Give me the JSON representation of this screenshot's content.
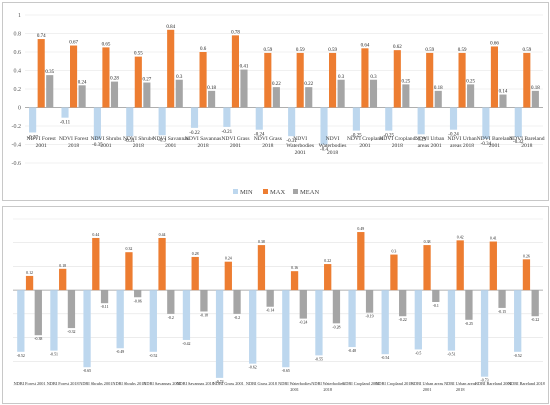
{
  "colors": {
    "min": "#bdd7ee",
    "max": "#ed7d31",
    "mean": "#a5a5a5",
    "grid": "#e2e2e2",
    "axis": "#9a9a9a"
  },
  "chart_data": [
    {
      "type": "bar",
      "title": "",
      "xlabel": "",
      "ylabel": "",
      "ylim": [
        -0.6,
        1
      ],
      "yticks": [
        "-0.6",
        "-0.4",
        "-0.2",
        "0",
        "0.2",
        "0.4",
        "0.6",
        "0.8",
        "1"
      ],
      "grid": true,
      "legend_position": "bottom",
      "categories": [
        "NDVI Forest 2001",
        "NDVI Forest 2018",
        "NDVI Shrubs 2001",
        "NDVI Shrubs 2018",
        "NDVI Savannas 2001",
        "NDVI Savannas 2018",
        "NDVI Grass 2001",
        "NDVI Grass 2018",
        "NDVI Waterbodies 2001",
        "NDVI Waterbodies 2018",
        "NDVI Cropland 2001",
        "NDVI Cropland 2018",
        "NDVI Urban areas 2001",
        "NDVI Urban areas 2018",
        "NDVI Bareland 2001",
        "NDVI Bareland 2018"
      ],
      "series": [
        {
          "name": "MIN",
          "values": [
            -0.27,
            -0.11,
            -0.35,
            -0.31,
            -0.3,
            -0.22,
            -0.21,
            -0.24,
            -0.31,
            -0.4,
            -0.25,
            -0.25,
            -0.29,
            -0.24,
            -0.34,
            -0.32
          ],
          "labels": [
            "-0.27",
            "-0.11",
            "-0.35",
            "-0.31",
            "-0.3",
            "-0.22",
            "-0.21",
            "-0.24",
            "-0.31",
            "-0.4",
            "-0.25",
            "-0.25",
            "-0.29",
            "-0.24",
            "-0.34",
            "-0.32"
          ]
        },
        {
          "name": "MAX",
          "values": [
            0.74,
            0.67,
            0.65,
            0.55,
            0.84,
            0.6,
            0.78,
            0.59,
            0.59,
            0.59,
            0.64,
            0.62,
            0.59,
            0.59,
            0.66,
            0.59
          ],
          "labels": [
            "0.74",
            "0.67",
            "0.65",
            "0.55",
            "0.84",
            "0.6",
            "0.78",
            "0.59",
            "0.59",
            "0.59",
            "0.64",
            "0.62",
            "0.59",
            "0.59",
            "0.66",
            "0.59"
          ]
        },
        {
          "name": "MEAN",
          "values": [
            0.35,
            0.24,
            0.28,
            0.27,
            0.3,
            0.18,
            0.41,
            0.22,
            0.22,
            0.3,
            0.3,
            0.25,
            0.18,
            0.25,
            0.14,
            0.18
          ],
          "labels": [
            "0.35",
            "0.24",
            "0.28",
            "0.27",
            "0.3",
            "0.18",
            "0.41",
            "0.22",
            "0.22",
            "0.3",
            "0.3",
            "0.25",
            "0.18",
            "0.25",
            "0.14",
            "0.18"
          ]
        }
      ]
    },
    {
      "type": "bar",
      "title": "",
      "xlabel": "",
      "ylabel": "",
      "ylim": [
        -0.8,
        0.6
      ],
      "grid": true,
      "legend_position": "",
      "categories": [
        "NDBI Forest 2001",
        "NDBI Forest 2018",
        "NDBI Shrubs 2001",
        "NDBI Shrubs 2018",
        "NDBI Savannas 2001",
        "NDBI Savannas 2018",
        "NDBI Grass 2001",
        "NDBI Grass 2018",
        "NDBI Waterbodies 2001",
        "NDBI Waterbodies 2018",
        "NDBI Cropland 2001",
        "NDBI Cropland 2018",
        "NDBI Urban areas 2001",
        "NDBI Urban areas 2018",
        "NDBI Bareland 2001",
        "NDBI Bareland 2018"
      ],
      "series": [
        {
          "name": "MIN",
          "values": [
            -0.52,
            -0.51,
            -0.65,
            -0.49,
            -0.52,
            -0.42,
            -0.74,
            -0.62,
            -0.65,
            -0.55,
            -0.48,
            -0.54,
            -0.5,
            -0.51,
            -0.73,
            -0.52
          ],
          "labels": [
            "-0.52",
            "-0.51",
            "-0.65",
            "-0.49",
            "-0.52",
            "-0.42",
            "-0.74",
            "-0.62",
            "-0.65",
            "-0.55",
            "-0.48",
            "-0.54",
            "-0.5",
            "-0.51",
            "-0.73",
            "-0.52"
          ]
        },
        {
          "name": "MAX",
          "values": [
            0.12,
            0.18,
            0.44,
            0.32,
            0.44,
            0.28,
            0.24,
            0.38,
            0.16,
            0.22,
            0.49,
            0.3,
            0.38,
            0.42,
            0.41,
            0.26
          ],
          "labels": [
            "0.12",
            "0.18",
            "0.44",
            "0.32",
            "0.44",
            "0.28",
            "0.24",
            "0.38",
            "0.16",
            "0.22",
            "0.49",
            "0.3",
            "0.38",
            "0.42",
            "0.41",
            "0.26"
          ]
        },
        {
          "name": "MEAN",
          "values": [
            -0.38,
            -0.32,
            -0.11,
            -0.06,
            -0.2,
            -0.18,
            -0.2,
            -0.14,
            -0.24,
            -0.28,
            -0.19,
            -0.22,
            -0.1,
            -0.25,
            -0.15,
            -0.22
          ],
          "labels": [
            "-0.38",
            "-0.32",
            "-0.11",
            "-0.06",
            "-0.2",
            "-0.18",
            "-0.2",
            "-0.14",
            "-0.24",
            "-0.28",
            "-0.19",
            "-0.22",
            "-0.1",
            "-0.25",
            "-0.15",
            "-0.22"
          ]
        }
      ]
    }
  ]
}
